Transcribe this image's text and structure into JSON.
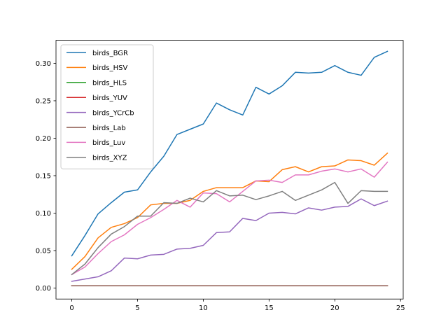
{
  "chart_data": {
    "type": "line",
    "title": "",
    "xlabel": "",
    "ylabel": "",
    "xlim": [
      -1.2,
      25.2
    ],
    "ylim": [
      -0.0147,
      0.3307
    ],
    "xticks": [
      0,
      5,
      10,
      15,
      20,
      25
    ],
    "yticks": [
      0.0,
      0.05,
      0.1,
      0.15,
      0.2,
      0.25,
      0.3
    ],
    "ytick_labels": [
      "0.00",
      "0.05",
      "0.10",
      "0.15",
      "0.20",
      "0.25",
      "0.30"
    ],
    "grid": false,
    "legend_position": "upper-left",
    "x": [
      0,
      1,
      2,
      3,
      4,
      5,
      6,
      7,
      8,
      9,
      10,
      11,
      12,
      13,
      14,
      15,
      16,
      17,
      18,
      19,
      20,
      21,
      22,
      23,
      24
    ],
    "series": [
      {
        "name": "birds_BGR",
        "color": "#1f77b4",
        "values": [
          0.043,
          0.07,
          0.099,
          0.114,
          0.128,
          0.131,
          0.155,
          0.176,
          0.205,
          0.212,
          0.219,
          0.247,
          0.238,
          0.231,
          0.268,
          0.259,
          0.27,
          0.288,
          0.287,
          0.288,
          0.297,
          0.288,
          0.284,
          0.308,
          0.316
        ]
      },
      {
        "name": "birds_HSV",
        "color": "#ff7f0e",
        "values": [
          0.025,
          0.042,
          0.067,
          0.081,
          0.086,
          0.094,
          0.111,
          0.113,
          0.113,
          0.117,
          0.129,
          0.134,
          0.134,
          0.134,
          0.143,
          0.142,
          0.158,
          0.162,
          0.155,
          0.162,
          0.163,
          0.171,
          0.17,
          0.164,
          0.18
        ]
      },
      {
        "name": "birds_HLS",
        "color": "#2ca02c",
        "values": [
          0.003,
          0.003,
          0.003,
          0.003,
          0.003,
          0.003,
          0.003,
          0.003,
          0.003,
          0.003,
          0.003,
          0.003,
          0.003,
          0.003,
          0.003,
          0.003,
          0.003,
          0.003,
          0.003,
          0.003,
          0.003,
          0.003,
          0.003,
          0.003,
          0.003
        ]
      },
      {
        "name": "birds_YUV",
        "color": "#d62728",
        "values": [
          0.003,
          0.003,
          0.003,
          0.003,
          0.003,
          0.003,
          0.003,
          0.003,
          0.003,
          0.003,
          0.003,
          0.003,
          0.003,
          0.003,
          0.003,
          0.003,
          0.003,
          0.003,
          0.003,
          0.003,
          0.003,
          0.003,
          0.003,
          0.003,
          0.003
        ]
      },
      {
        "name": "birds_YCrCb",
        "color": "#9467bd",
        "values": [
          0.009,
          0.012,
          0.015,
          0.023,
          0.04,
          0.039,
          0.044,
          0.045,
          0.052,
          0.053,
          0.057,
          0.074,
          0.075,
          0.093,
          0.09,
          0.1,
          0.101,
          0.099,
          0.107,
          0.104,
          0.108,
          0.109,
          0.119,
          0.11,
          0.116
        ]
      },
      {
        "name": "birds_Lab",
        "color": "#8c564b",
        "values": [
          0.003,
          0.003,
          0.003,
          0.003,
          0.003,
          0.003,
          0.003,
          0.003,
          0.003,
          0.003,
          0.003,
          0.003,
          0.003,
          0.003,
          0.003,
          0.003,
          0.003,
          0.003,
          0.003,
          0.003,
          0.003,
          0.003,
          0.003,
          0.003,
          0.003
        ]
      },
      {
        "name": "birds_Luv",
        "color": "#e377c2",
        "values": [
          0.018,
          0.028,
          0.046,
          0.062,
          0.071,
          0.085,
          0.094,
          0.105,
          0.117,
          0.108,
          0.127,
          0.126,
          0.115,
          0.129,
          0.143,
          0.144,
          0.141,
          0.151,
          0.151,
          0.156,
          0.159,
          0.155,
          0.159,
          0.148,
          0.168
        ]
      },
      {
        "name": "birds_XYZ",
        "color": "#7f7f7f",
        "values": [
          0.018,
          0.032,
          0.054,
          0.072,
          0.082,
          0.096,
          0.096,
          0.114,
          0.113,
          0.12,
          0.115,
          0.13,
          0.123,
          0.124,
          0.118,
          0.123,
          0.129,
          0.117,
          0.124,
          0.131,
          0.141,
          0.113,
          0.13,
          0.129,
          0.129
        ]
      }
    ]
  }
}
